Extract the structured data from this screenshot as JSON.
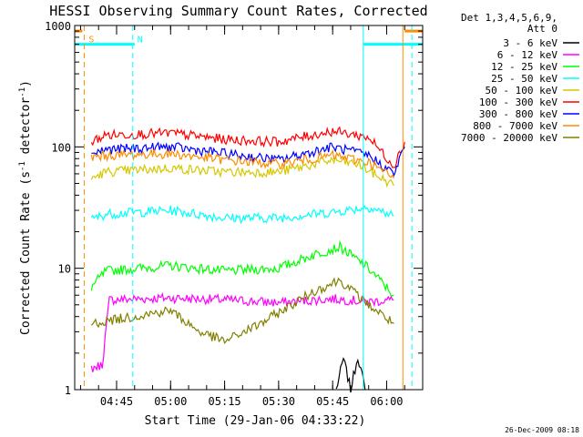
{
  "chart_data": {
    "type": "line",
    "title": "HESSI Observing Summary Count Rates, Corrected",
    "xlabel": "Start Time (29-Jan-06 04:33:22)",
    "ylabel": "Corrected Count Rate (s⁻¹ detector⁻¹)",
    "ylabel_main": "Corrected Count Rate (s",
    "ylabel_mid": " detector",
    "ylabel_end": ")",
    "ylabel_sup": "-1",
    "y_scale": "log",
    "ylim": [
      1,
      1000
    ],
    "yticks": [
      "1",
      "10",
      "100",
      "1000"
    ],
    "xlim": [
      "04:33:22",
      "06:10:00"
    ],
    "xticks": [
      "04:45",
      "05:00",
      "05:15",
      "05:30",
      "05:45",
      "06:00"
    ],
    "grid": false,
    "legend_position": "right",
    "legend_header": [
      "Det 1,3,4,5,6,9,",
      "Att 0"
    ],
    "footer_date": "26-Dec-2009 08:18",
    "series": [
      {
        "name": "3 - 6 keV",
        "color": "#000000",
        "level": 1,
        "points": [
          [
            "05:46",
            1
          ],
          [
            "05:48",
            1.8
          ],
          [
            "05:50",
            1
          ],
          [
            "05:52",
            1.9
          ],
          [
            "05:54",
            1
          ]
        ]
      },
      {
        "name": "6 - 12 keV",
        "color": "#ff00ff",
        "level": 5.5,
        "points": [
          [
            "04:38",
            1.5
          ],
          [
            "04:41",
            1.6
          ],
          [
            "04:43",
            5.5
          ],
          [
            "05:00",
            5.7
          ],
          [
            "05:15",
            5.5
          ],
          [
            "05:30",
            5.2
          ],
          [
            "05:45",
            5.6
          ],
          [
            "05:55",
            5.3
          ],
          [
            "06:02",
            5.5
          ]
        ]
      },
      {
        "name": "12 - 25 keV",
        "color": "#00ff00",
        "level": 10,
        "points": [
          [
            "04:38",
            7
          ],
          [
            "04:42",
            9.5
          ],
          [
            "05:00",
            10.5
          ],
          [
            "05:15",
            9.5
          ],
          [
            "05:30",
            10
          ],
          [
            "05:40",
            13
          ],
          [
            "05:47",
            15
          ],
          [
            "05:55",
            10
          ],
          [
            "06:02",
            6
          ]
        ]
      },
      {
        "name": "25 - 50 keV",
        "color": "#00ffff",
        "level": 30,
        "points": [
          [
            "04:38",
            25
          ],
          [
            "04:42",
            28
          ],
          [
            "05:00",
            30
          ],
          [
            "05:15",
            26
          ],
          [
            "05:30",
            26
          ],
          [
            "05:45",
            29
          ],
          [
            "05:55",
            32
          ],
          [
            "06:02",
            27
          ]
        ]
      },
      {
        "name": "50 - 100 keV",
        "color": "#d4c800",
        "level": 65,
        "points": [
          [
            "04:38",
            55
          ],
          [
            "04:42",
            62
          ],
          [
            "05:00",
            67
          ],
          [
            "05:15",
            62
          ],
          [
            "05:30",
            62
          ],
          [
            "05:45",
            78
          ],
          [
            "05:52",
            72
          ],
          [
            "06:02",
            48
          ]
        ]
      },
      {
        "name": "100 - 300 keV",
        "color": "#ff0000",
        "level": 120,
        "points": [
          [
            "04:38",
            110
          ],
          [
            "04:42",
            125
          ],
          [
            "05:00",
            130
          ],
          [
            "05:15",
            115
          ],
          [
            "05:30",
            110
          ],
          [
            "05:45",
            135
          ],
          [
            "05:55",
            120
          ],
          [
            "06:02",
            70
          ],
          [
            "06:05",
            110
          ]
        ]
      },
      {
        "name": "300 - 800 keV",
        "color": "#0000ff",
        "level": 95,
        "points": [
          [
            "04:38",
            88
          ],
          [
            "04:42",
            95
          ],
          [
            "05:00",
            100
          ],
          [
            "05:15",
            88
          ],
          [
            "05:30",
            78
          ],
          [
            "05:45",
            100
          ],
          [
            "05:55",
            85
          ],
          [
            "06:02",
            60
          ],
          [
            "06:05",
            100
          ]
        ]
      },
      {
        "name": "800 - 7000 keV",
        "color": "#ff8c00",
        "level": 85,
        "points": [
          [
            "04:38",
            82
          ],
          [
            "04:42",
            85
          ],
          [
            "05:00",
            88
          ],
          [
            "05:15",
            78
          ],
          [
            "05:30",
            72
          ],
          [
            "05:45",
            85
          ],
          [
            "05:55",
            75
          ],
          [
            "06:02",
            55
          ]
        ]
      },
      {
        "name": "7000 - 20000 keV",
        "color": "#808000",
        "level": 3.5,
        "points": [
          [
            "04:38",
            3.5
          ],
          [
            "04:45",
            3.8
          ],
          [
            "05:00",
            4.5
          ],
          [
            "05:08",
            3
          ],
          [
            "05:15",
            2.5
          ],
          [
            "05:25",
            3.5
          ],
          [
            "05:40",
            6.5
          ],
          [
            "05:47",
            8
          ],
          [
            "05:55",
            5
          ],
          [
            "06:02",
            3.5
          ]
        ]
      }
    ],
    "annotations": [
      {
        "text": "S",
        "color": "#ff8c00"
      },
      {
        "text": "N",
        "color": "#00ffff"
      }
    ],
    "markers": [
      {
        "kind": "saa_bar",
        "color": "#ff8c00",
        "range": [
          "04:33:22",
          "04:35:30"
        ],
        "y": 900
      },
      {
        "kind": "saa_bar",
        "color": "#ff8c00",
        "range": [
          "06:05:00",
          "06:10:00"
        ],
        "y": 900
      },
      {
        "kind": "night_bar",
        "color": "#00ffff",
        "range": [
          "04:33:22",
          "04:50:00"
        ],
        "y": 700
      },
      {
        "kind": "night_bar",
        "color": "#00ffff",
        "range": [
          "05:53:30",
          "06:10:00"
        ],
        "y": 700
      },
      {
        "kind": "dashed_vline",
        "color": "#ff8c00",
        "at": "04:36:00"
      },
      {
        "kind": "dashed_vline",
        "color": "#00ffff",
        "at": "04:49:30"
      },
      {
        "kind": "dashed_vline",
        "color": "#00ffff",
        "at": "06:07:00"
      },
      {
        "kind": "solid_vline",
        "color": "#00ffff",
        "at": "05:53:30"
      },
      {
        "kind": "solid_vline",
        "color": "#ff8c00",
        "at": "06:04:30"
      }
    ]
  }
}
